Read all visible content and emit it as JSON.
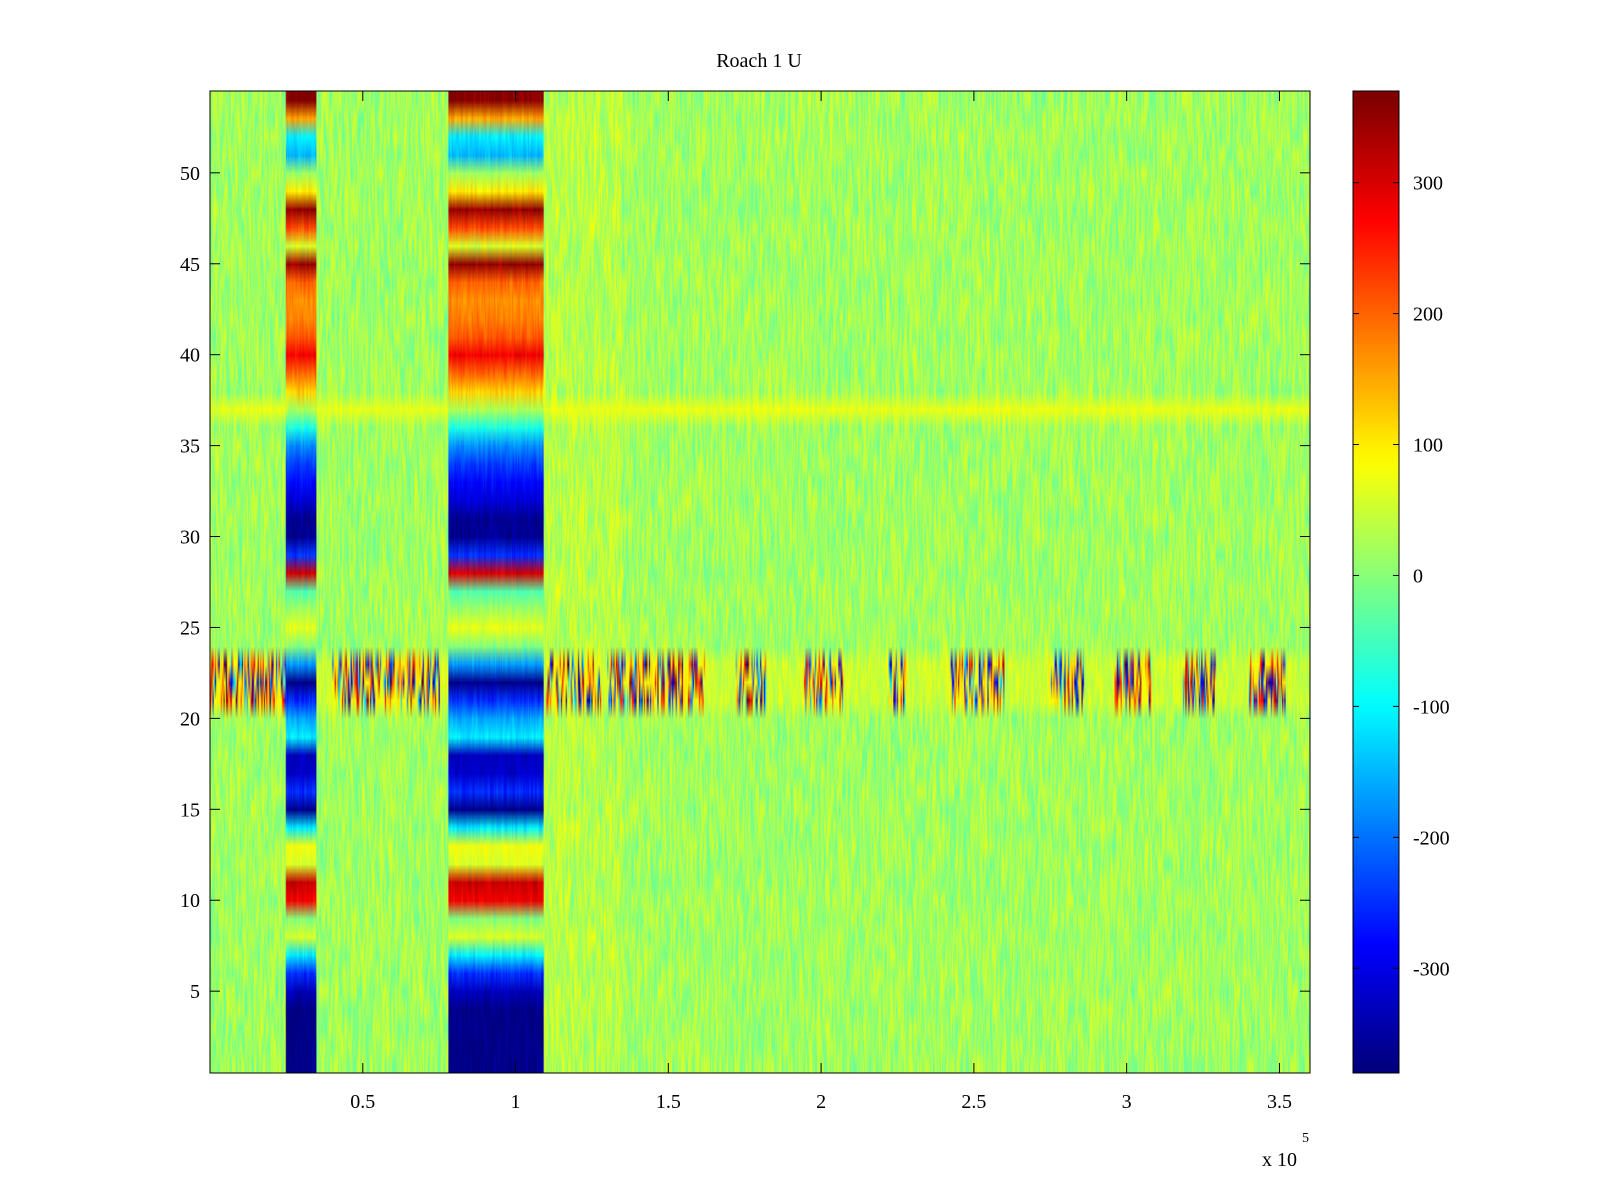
{
  "chart_data": {
    "type": "heatmap",
    "title": "Roach 1 U",
    "xlabel": "",
    "ylabel": "",
    "x_exponent_label": "x 10",
    "x_exponent_power": "5",
    "xlim": [
      0,
      3.6
    ],
    "ylim": [
      0.5,
      54.5
    ],
    "x_ticks": [
      0.5,
      1,
      1.5,
      2,
      2.5,
      3,
      3.5
    ],
    "x_tick_labels": [
      "0.5",
      "1",
      "1.5",
      "2",
      "2.5",
      "3",
      "3.5"
    ],
    "y_ticks": [
      5,
      10,
      15,
      20,
      25,
      30,
      35,
      40,
      45,
      50
    ],
    "y_tick_labels": [
      "5",
      "10",
      "15",
      "20",
      "25",
      "30",
      "35",
      "40",
      "45",
      "50"
    ],
    "rows": 54,
    "colormap": "jet",
    "clim": [
      -380,
      370
    ],
    "colorbar": {
      "ticks": [
        300,
        200,
        100,
        0,
        -100,
        -200,
        -300
      ],
      "tick_labels": [
        "300",
        "200",
        "100",
        "0",
        "-100",
        "-200",
        "-300"
      ]
    },
    "background_value_mean": 20,
    "background_noise_amplitude": 45,
    "strong_bands": [
      {
        "x_start": 0.25,
        "x_end": 0.35
      },
      {
        "x_start": 0.78,
        "x_end": 1.09
      }
    ],
    "band_row_values": {
      "1": -370,
      "2": -370,
      "3": -370,
      "4": -370,
      "5": -330,
      "6": -250,
      "7": -110,
      "8": 60,
      "9": 0,
      "10": 280,
      "11": 310,
      "12": 60,
      "13": 80,
      "14": -110,
      "15": -370,
      "16": -250,
      "17": -320,
      "18": -330,
      "19": -110,
      "20": -160,
      "21": -250,
      "22": -370,
      "23": -170,
      "24": 0,
      "25": 70,
      "26": 20,
      "27": -40,
      "28": 300,
      "29": -250,
      "30": -360,
      "31": -360,
      "32": -310,
      "33": -280,
      "34": -240,
      "35": -180,
      "36": -80,
      "37": 30,
      "38": 120,
      "39": 200,
      "40": 280,
      "41": 210,
      "42": 180,
      "43": 170,
      "44": 200,
      "45": 350,
      "46": 60,
      "47": 220,
      "48": 350,
      "49": 100,
      "50": 20,
      "51": -150,
      "52": -110,
      "53": 150,
      "54": 360
    },
    "noisy_rows": [
      21,
      22,
      23
    ],
    "noisy_segments": [
      {
        "x_start": 0.0,
        "x_end": 0.25
      },
      {
        "x_start": 0.4,
        "x_end": 0.75
      },
      {
        "x_start": 1.1,
        "x_end": 1.28
      },
      {
        "x_start": 1.3,
        "x_end": 1.62
      },
      {
        "x_start": 1.72,
        "x_end": 1.82
      },
      {
        "x_start": 1.94,
        "x_end": 2.07
      },
      {
        "x_start": 2.22,
        "x_end": 2.28
      },
      {
        "x_start": 2.42,
        "x_end": 2.6
      },
      {
        "x_start": 2.74,
        "x_end": 2.86
      },
      {
        "x_start": 2.96,
        "x_end": 3.08
      },
      {
        "x_start": 3.18,
        "x_end": 3.29
      },
      {
        "x_start": 3.4,
        "x_end": 3.52
      }
    ],
    "row_37_lighter": true
  }
}
